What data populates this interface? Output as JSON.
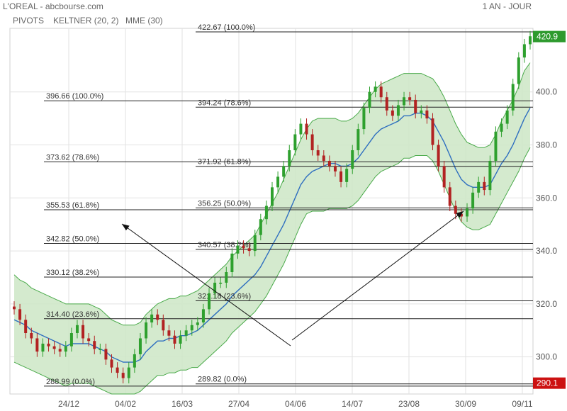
{
  "header": {
    "title": "L'OREAL - abcbourse.com",
    "period": "1 AN - JOUR",
    "legend": [
      {
        "label": "PIVOTS",
        "color": "#666666"
      },
      {
        "label": "KELTNER (20, 2)",
        "color": "#4aaa4a"
      },
      {
        "label": "MME (30)",
        "color": "#2f6fc0"
      }
    ]
  },
  "chart_data": {
    "type": "line",
    "title": "L'OREAL",
    "ylim": [
      286,
      424
    ],
    "yticks": [
      300,
      320,
      340,
      360,
      380,
      400
    ],
    "ytick_labels": [
      "300.0",
      "320.0",
      "340.0",
      "360.0",
      "380.0",
      "400.0"
    ],
    "x_tick_labels": [
      "24/12",
      "04/02",
      "16/03",
      "27/04",
      "04/06",
      "14/07",
      "23/08",
      "30/09",
      "09/11"
    ],
    "grid": true,
    "last_price": "420.9",
    "low_price": "290.1",
    "fib_left": [
      {
        "label": "396.66  (100.0%)",
        "value": 396.66
      },
      {
        "label": "373.62  (78.6%)",
        "value": 373.62
      },
      {
        "label": "355.53  (61.8%)",
        "value": 355.53
      },
      {
        "label": "342.82  (50.0%)",
        "value": 342.82
      },
      {
        "label": "330.12  (38.2%)",
        "value": 330.12
      },
      {
        "label": "314.40  (23.6%)",
        "value": 314.4
      },
      {
        "label": "288.99  (0.0%)",
        "value": 288.99
      }
    ],
    "fib_right": [
      {
        "label": "422.67  (100.0%)",
        "value": 422.67
      },
      {
        "label": "394.24  (78.6%)",
        "value": 394.24
      },
      {
        "label": "371.92  (61.8%)",
        "value": 371.92
      },
      {
        "label": "356.25  (50.0%)",
        "value": 356.25
      },
      {
        "label": "340.57  (38.2%)",
        "value": 340.57
      },
      {
        "label": "321.18  (23.6%)",
        "value": 321.18
      },
      {
        "label": "289.82  (0.0%)",
        "value": 289.82
      }
    ],
    "price_series": {
      "name": "L'OREAL",
      "values": [
        318,
        314,
        309,
        307,
        302,
        305,
        304,
        303,
        302,
        304,
        309,
        312,
        307,
        306,
        303,
        303,
        299,
        296,
        294,
        292,
        296,
        301,
        307,
        313,
        316,
        314,
        310,
        308,
        305,
        308,
        310,
        312,
        313,
        318,
        324,
        328,
        328,
        332,
        339,
        342,
        341,
        340,
        346,
        352,
        357,
        364,
        368,
        372,
        378,
        384,
        388,
        384,
        378,
        376,
        374,
        372,
        370,
        366,
        371,
        378,
        386,
        394,
        400,
        402,
        398,
        393,
        391,
        395,
        398,
        397,
        392,
        393,
        390,
        380,
        372,
        364,
        357,
        354,
        353,
        356,
        362,
        366,
        363,
        374,
        385,
        388,
        393,
        403,
        413,
        418,
        421
      ]
    },
    "ema_series": {
      "name": "MME (30)",
      "values": [
        314,
        313,
        312,
        310,
        309,
        308,
        307,
        306,
        305,
        304,
        305,
        305,
        305,
        305,
        304,
        303,
        302,
        300,
        299,
        298,
        298,
        298,
        299,
        302,
        304,
        306,
        306,
        307,
        307,
        308,
        308,
        309,
        310,
        312,
        314,
        316,
        318,
        320,
        323,
        325,
        327,
        329,
        331,
        334,
        338,
        342,
        346,
        350,
        355,
        360,
        365,
        368,
        370,
        371,
        372,
        373,
        373,
        372,
        372,
        373,
        375,
        378,
        381,
        384,
        386,
        387,
        388,
        389,
        391,
        391,
        392,
        392,
        391,
        389,
        385,
        381,
        376,
        371,
        367,
        365,
        364,
        364,
        364,
        365,
        369,
        373,
        376,
        380,
        385,
        390,
        394
      ]
    },
    "keltner_upper": [
      331,
      329,
      328,
      326,
      325,
      324,
      323,
      322,
      321,
      320,
      320,
      320,
      320,
      320,
      319,
      318,
      316,
      314,
      313,
      312,
      312,
      312,
      313,
      316,
      318,
      320,
      321,
      322,
      322,
      323,
      323,
      324,
      325,
      327,
      329,
      331,
      333,
      335,
      338,
      340,
      342,
      344,
      346,
      350,
      354,
      358,
      362,
      367,
      372,
      377,
      382,
      386,
      389,
      390,
      390,
      390,
      390,
      389,
      389,
      390,
      392,
      395,
      398,
      401,
      403,
      404,
      405,
      406,
      407,
      407,
      407,
      407,
      406,
      405,
      402,
      398,
      393,
      388,
      384,
      381,
      380,
      379,
      379,
      380,
      384,
      389,
      393,
      397,
      402,
      408,
      411
    ],
    "keltner_lower": [
      298,
      297,
      296,
      295,
      294,
      293,
      292,
      291,
      290,
      289,
      290,
      290,
      290,
      290,
      289,
      288,
      287,
      286,
      286,
      286,
      286,
      286,
      287,
      289,
      291,
      293,
      293,
      294,
      294,
      295,
      295,
      296,
      296,
      298,
      300,
      302,
      304,
      306,
      309,
      311,
      313,
      315,
      317,
      320,
      323,
      327,
      331,
      335,
      340,
      345,
      350,
      354,
      355,
      355,
      355,
      356,
      356,
      356,
      356,
      357,
      359,
      362,
      365,
      368,
      370,
      371,
      372,
      373,
      375,
      375,
      376,
      376,
      376,
      374,
      370,
      365,
      360,
      355,
      351,
      349,
      348,
      348,
      349,
      350,
      354,
      358,
      362,
      366,
      370,
      375,
      379
    ],
    "annotation_arrows": [
      {
        "from": [
          410,
          488
        ],
        "to": [
          172,
          316
        ]
      },
      {
        "from": [
          412,
          480
        ],
        "to": [
          654,
          298
        ]
      }
    ]
  },
  "colors": {
    "up": "#2ea02e",
    "down": "#b22222",
    "band_fill": "#cfe8c9",
    "band_line": "#4aaa4a",
    "ema": "#2f6fc0",
    "grid": "#e2e2e2",
    "price_tag": "#2e9a2e",
    "low_tag": "#cc1111"
  }
}
